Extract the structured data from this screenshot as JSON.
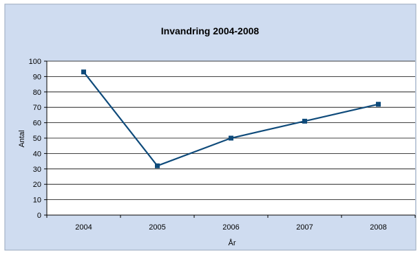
{
  "chart_data": {
    "type": "line",
    "title": "Invandring 2004-2008",
    "xlabel": "År",
    "ylabel": "Antal",
    "categories": [
      "2004",
      "2005",
      "2006",
      "2007",
      "2008"
    ],
    "series": [
      {
        "values": [
          93,
          32,
          50,
          61,
          72
        ]
      }
    ],
    "ylim": [
      0,
      100
    ],
    "yticks": [
      "0",
      "10",
      "20",
      "30",
      "40",
      "50",
      "60",
      "70",
      "80",
      "90",
      "100"
    ],
    "grid": true,
    "legend": "none",
    "colors": {
      "background": "#cfdcf0",
      "plot_area": "#ffffff",
      "line": "#0e4a7a",
      "marker": "#0e4a7a",
      "gridline": "#000000"
    }
  }
}
